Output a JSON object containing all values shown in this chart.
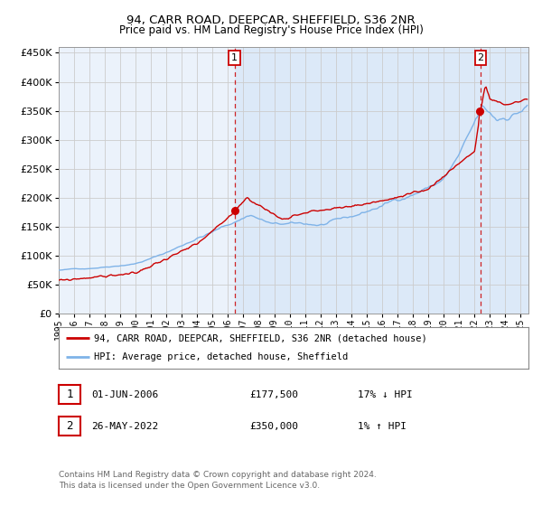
{
  "title": "94, CARR ROAD, DEEPCAR, SHEFFIELD, S36 2NR",
  "subtitle": "Price paid vs. HM Land Registry's House Price Index (HPI)",
  "legend_line1": "94, CARR ROAD, DEEPCAR, SHEFFIELD, S36 2NR (detached house)",
  "legend_line2": "HPI: Average price, detached house, Sheffield",
  "annotation1_date": "01-JUN-2006",
  "annotation1_price": "£177,500",
  "annotation1_hpi": "17% ↓ HPI",
  "annotation2_date": "26-MAY-2022",
  "annotation2_price": "£350,000",
  "annotation2_hpi": "1% ↑ HPI",
  "footer": "Contains HM Land Registry data © Crown copyright and database right 2024.\nThis data is licensed under the Open Government Licence v3.0.",
  "bg_color_left": "#f0f0f0",
  "bg_color_right": "#dce9f8",
  "grid_color": "#cccccc",
  "red_color": "#cc0000",
  "blue_color": "#7fb3e8",
  "ylim_min": 0,
  "ylim_max": 460000,
  "xlim_min": 1995,
  "xlim_max": 2025.5,
  "sale1_year": 2006.42,
  "sale1_price": 177500,
  "sale2_year": 2022.4,
  "sale2_price": 350000
}
